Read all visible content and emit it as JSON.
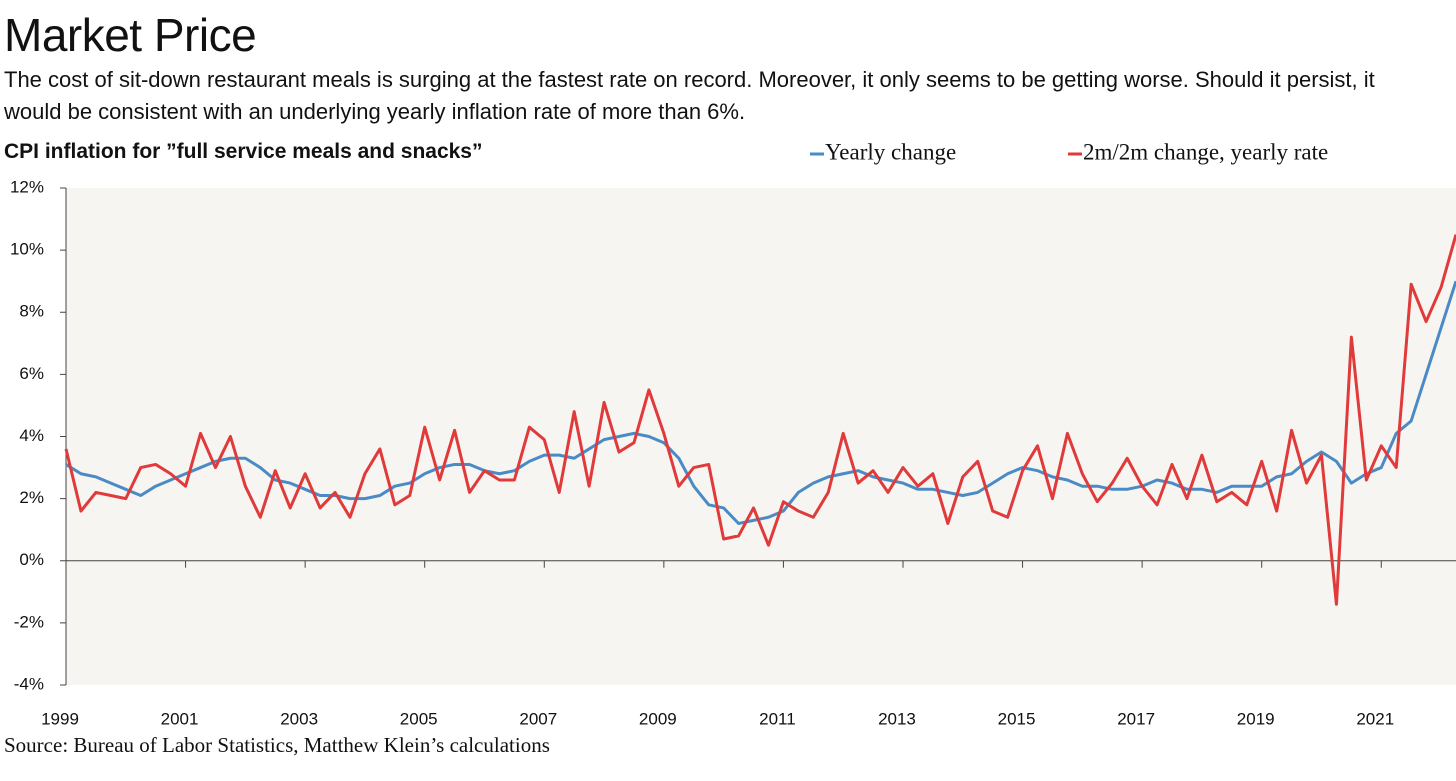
{
  "chart_data": {
    "type": "line",
    "title": "Market Price",
    "subtitle": "The cost of sit-down restaurant meals is surging at the fastest rate on record. Moreover, it only seems to be getting worse. Should it persist, it would be consistent with an underlying yearly inflation rate of more than 6%.",
    "chart_title": "CPI inflation for ”full service meals and snacks”",
    "source": "Source: Bureau of Labor Statistics, Matthew Klein’s calculations",
    "x": [
      1999,
      1999.25,
      1999.5,
      1999.75,
      2000,
      2000.25,
      2000.5,
      2000.75,
      2001,
      2001.25,
      2001.5,
      2001.75,
      2002,
      2002.25,
      2002.5,
      2002.75,
      2003,
      2003.25,
      2003.5,
      2003.75,
      2004,
      2004.25,
      2004.5,
      2004.75,
      2005,
      2005.25,
      2005.5,
      2005.75,
      2006,
      2006.25,
      2006.5,
      2006.75,
      2007,
      2007.25,
      2007.5,
      2007.75,
      2008,
      2008.25,
      2008.5,
      2008.75,
      2009,
      2009.25,
      2009.5,
      2009.75,
      2010,
      2010.25,
      2010.5,
      2010.75,
      2011,
      2011.25,
      2011.5,
      2011.75,
      2012,
      2012.25,
      2012.5,
      2012.75,
      2013,
      2013.25,
      2013.5,
      2013.75,
      2014,
      2014.25,
      2014.5,
      2014.75,
      2015,
      2015.25,
      2015.5,
      2015.75,
      2016,
      2016.25,
      2016.5,
      2016.75,
      2017,
      2017.25,
      2017.5,
      2017.75,
      2018,
      2018.25,
      2018.5,
      2018.75,
      2019,
      2019.25,
      2019.5,
      2019.75,
      2020,
      2020.25,
      2020.5,
      2020.75,
      2021,
      2021.25,
      2021.5,
      2021.75,
      2022,
      2022.25
    ],
    "series": [
      {
        "name": "Yearly change",
        "color": "#4a8bc6",
        "values": [
          3.1,
          2.8,
          2.7,
          2.5,
          2.3,
          2.1,
          2.4,
          2.6,
          2.8,
          3.0,
          3.2,
          3.3,
          3.3,
          3.0,
          2.6,
          2.5,
          2.3,
          2.1,
          2.1,
          2.0,
          2.0,
          2.1,
          2.4,
          2.5,
          2.8,
          3.0,
          3.1,
          3.1,
          2.9,
          2.8,
          2.9,
          3.2,
          3.4,
          3.4,
          3.3,
          3.6,
          3.9,
          4.0,
          4.1,
          4.0,
          3.8,
          3.3,
          2.4,
          1.8,
          1.7,
          1.2,
          1.3,
          1.4,
          1.6,
          2.2,
          2.5,
          2.7,
          2.8,
          2.9,
          2.7,
          2.6,
          2.5,
          2.3,
          2.3,
          2.2,
          2.1,
          2.2,
          2.5,
          2.8,
          3.0,
          2.9,
          2.7,
          2.6,
          2.4,
          2.4,
          2.3,
          2.3,
          2.4,
          2.6,
          2.5,
          2.3,
          2.3,
          2.2,
          2.4,
          2.4,
          2.4,
          2.7,
          2.8,
          3.2,
          3.5,
          3.2,
          2.5,
          2.8,
          3.0,
          4.1,
          4.5,
          6.0,
          7.5,
          9.0
        ]
      },
      {
        "name": "2m/2m change, yearly rate",
        "color": "#e03a3a",
        "values": [
          3.6,
          1.6,
          2.2,
          2.1,
          2.0,
          3.0,
          3.1,
          2.8,
          2.4,
          4.1,
          3.0,
          4.0,
          2.4,
          1.4,
          2.9,
          1.7,
          2.8,
          1.7,
          2.2,
          1.4,
          2.8,
          3.6,
          1.8,
          2.1,
          4.3,
          2.6,
          4.2,
          2.2,
          2.9,
          2.6,
          2.6,
          4.3,
          3.9,
          2.2,
          4.8,
          2.4,
          5.1,
          3.5,
          3.8,
          5.5,
          4.1,
          2.4,
          3.0,
          3.1,
          0.7,
          0.8,
          1.7,
          0.5,
          1.9,
          1.6,
          1.4,
          2.2,
          4.1,
          2.5,
          2.9,
          2.2,
          3.0,
          2.4,
          2.8,
          1.2,
          2.7,
          3.2,
          1.6,
          1.4,
          2.9,
          3.7,
          2.0,
          4.1,
          2.8,
          1.9,
          2.5,
          3.3,
          2.4,
          1.8,
          3.1,
          2.0,
          3.4,
          1.9,
          2.2,
          1.8,
          3.2,
          1.6,
          4.2,
          2.5,
          3.4,
          -1.4,
          7.2,
          2.6,
          3.7,
          3.0,
          8.9,
          7.7,
          8.8,
          10.5
        ]
      }
    ],
    "xlim": [
      1999,
      2022.25
    ],
    "xticks": [
      1999,
      2001,
      2003,
      2005,
      2007,
      2009,
      2011,
      2013,
      2015,
      2017,
      2019,
      2021
    ],
    "ylim": [
      -4,
      12
    ],
    "yticks": [
      {
        "value": -4,
        "label": "-4%"
      },
      {
        "value": -2,
        "label": "-2%"
      },
      {
        "value": 0,
        "label": "0%"
      },
      {
        "value": 2,
        "label": "2%"
      },
      {
        "value": 4,
        "label": "4%"
      },
      {
        "value": 6,
        "label": "6%"
      },
      {
        "value": 8,
        "label": "8%"
      },
      {
        "value": 10,
        "label": "10%"
      },
      {
        "value": 12,
        "label": "12%"
      }
    ],
    "grid": false
  }
}
